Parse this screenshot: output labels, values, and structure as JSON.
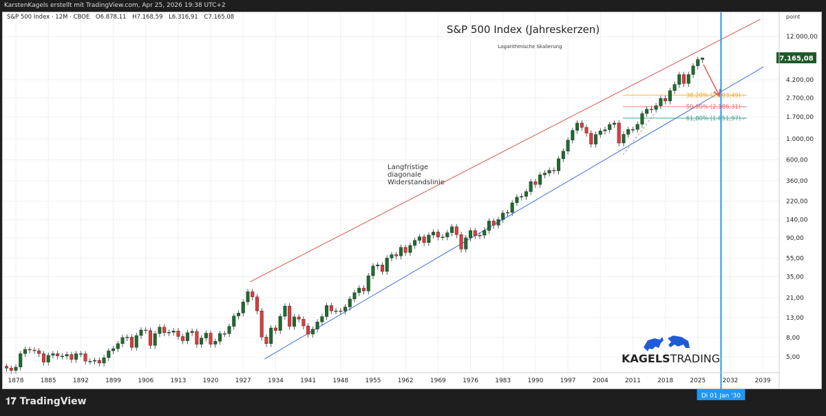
{
  "header": {
    "credit": "KarstenKagels erstellt mit TradingView.com, Apr 25, 2026 19:38 UTC+2"
  },
  "legend": {
    "symbol": "S&P 500 Index · 12M · CBOE",
    "open": "O6.878,11",
    "high": "H7.168,59",
    "low": "L6.316,91",
    "close": "C7.165,08"
  },
  "footer": {
    "brand": "TradingView"
  },
  "logo": {
    "text_bold": "KAGELS",
    "text_light": "TRADING",
    "color": "#1f5bd6"
  },
  "chart_data": {
    "type": "candlestick",
    "title": "S&P 500 Index (Jahreskerzen)",
    "subtitle": "Logarithmische Skalierung",
    "y_unit": "point",
    "y_scale": "log",
    "grid": true,
    "x_ticks": [
      "1878",
      "1885",
      "1892",
      "1899",
      "1906",
      "1913",
      "1920",
      "1927",
      "1934",
      "1941",
      "1948",
      "1955",
      "1962",
      "1969",
      "1976",
      "1983",
      "1990",
      "1997",
      "2004",
      "2011",
      "2018",
      "2025",
      "2032",
      "2039"
    ],
    "y_ticks": [
      12000,
      4200,
      2700,
      1700,
      1000,
      600,
      360,
      220,
      140,
      90,
      55,
      35,
      21,
      13,
      8,
      5
    ],
    "y_tick_labels": [
      "12.000,00",
      "4.200,00",
      "2.700,00",
      "1.700,00",
      "1.000,00",
      "600,00",
      "360,00",
      "220,00",
      "140,00",
      "90,00",
      "55,00",
      "35,00",
      "21,00",
      "13,00",
      "8,00",
      "5,00"
    ],
    "last_price_label": "7.165,08",
    "last_price": 7165.08,
    "crosshair_label": "Di 01 Jan '30",
    "crosshair_year": 2030,
    "start_year": 1876,
    "annual_close": [
      3.8,
      3.6,
      3.9,
      5.4,
      6.0,
      5.9,
      5.8,
      5.4,
      4.4,
      5.2,
      5.4,
      5.1,
      5.1,
      5.3,
      4.7,
      5.4,
      5.4,
      4.5,
      4.5,
      4.6,
      4.3,
      4.9,
      5.8,
      6.1,
      6.9,
      8.0,
      8.1,
      6.3,
      8.4,
      9.6,
      9.5,
      6.6,
      8.8,
      10.3,
      9.0,
      9.1,
      9.4,
      8.2,
      7.4,
      9.0,
      9.3,
      6.8,
      7.9,
      8.9,
      6.8,
      7.3,
      8.8,
      8.8,
      10.5,
      13.5,
      14.5,
      19.0,
      24.4,
      21.5,
      15.3,
      8.1,
      6.9,
      10.1,
      9.5,
      13.4,
      17.2,
      10.5,
      13.2,
      12.5,
      10.6,
      8.7,
      9.8,
      11.7,
      13.3,
      17.4,
      15.3,
      15.3,
      15.2,
      16.8,
      20.4,
      23.8,
      26.6,
      24.8,
      35.9,
      45.5,
      46.7,
      39.9,
      55.2,
      59.9,
      58.1,
      71.6,
      63.1,
      75.0,
      84.8,
      92.4,
      80.3,
      96.5,
      103.9,
      92.1,
      92.2,
      102.1,
      118.1,
      97.6,
      68.6,
      90.2,
      107.5,
      95.1,
      96.1,
      107.9,
      135.8,
      122.6,
      140.6,
      164.9,
      167.2,
      211.3,
      242.2,
      247.1,
      277.7,
      353.4,
      330.2,
      417.1,
      435.7,
      466.5,
      459.3,
      615.9,
      740.7,
      970.4,
      1229.2,
      1469.3,
      1320.3,
      1148.1,
      879.8,
      1111.9,
      1211.9,
      1248.3,
      1418.3,
      1468.4,
      903.3,
      1115.1,
      1257.6,
      1257.6,
      1426.2,
      1848.4,
      2058.9,
      2043.9,
      2238.8,
      2673.6,
      2506.9,
      3230.8,
      3756.1,
      4766.2,
      3839.5,
      4769.8,
      5881.6,
      6878.11,
      7165.08
    ],
    "last_candle": {
      "open": 6878.11,
      "high": 7168.59,
      "low": 6316.91,
      "close": 7165.08
    },
    "trendlines": [
      {
        "name": "resistance",
        "color": "#d9534f",
        "from": [
          1928.5,
          31
        ],
        "to": [
          2038.5,
          18300
        ]
      },
      {
        "name": "support",
        "color": "#3b6fe0",
        "from": [
          1931.6,
          4.75
        ],
        "to": [
          2039.2,
          5770
        ]
      }
    ],
    "annotation": [
      "Langfristige",
      "diagonale",
      "Widerstandslinie"
    ],
    "fib_levels": [
      {
        "label": "38,20% (2.893,49)",
        "value": 2893.49,
        "color": "#f5a623"
      },
      {
        "label": "50,00% (2.186,31)",
        "value": 2186.31,
        "color": "#f06a6a"
      },
      {
        "label": "61,80% (1.651,97)",
        "value": 1651.97,
        "color": "#3a9e8c"
      }
    ],
    "colors": {
      "up": "#1e6b2e",
      "down": "#e03a3a",
      "crosshair": "#2196f3"
    }
  }
}
